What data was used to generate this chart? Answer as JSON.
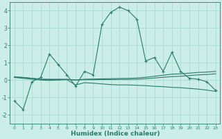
{
  "x": [
    0,
    1,
    2,
    3,
    4,
    5,
    6,
    7,
    8,
    9,
    10,
    11,
    12,
    13,
    14,
    15,
    16,
    17,
    18,
    19,
    20,
    21,
    22,
    23
  ],
  "line1": [
    -1.2,
    -1.7,
    -0.1,
    0.15,
    1.5,
    0.9,
    0.3,
    -0.35,
    0.5,
    0.3,
    3.2,
    3.9,
    4.2,
    4.0,
    3.5,
    1.1,
    1.3,
    0.5,
    1.6,
    0.5,
    0.1,
    0.05,
    -0.1,
    -0.6
  ],
  "line2": [
    0.15,
    0.1,
    0.05,
    0.0,
    -0.02,
    0.0,
    0.02,
    -0.28,
    -0.15,
    -0.18,
    -0.22,
    -0.26,
    -0.28,
    -0.28,
    -0.3,
    -0.32,
    -0.36,
    -0.38,
    -0.42,
    -0.44,
    -0.48,
    -0.52,
    -0.58,
    -0.65
  ],
  "line3": [
    0.18,
    0.15,
    0.1,
    0.05,
    0.04,
    0.04,
    0.04,
    0.0,
    0.02,
    0.02,
    0.03,
    0.03,
    0.04,
    0.04,
    0.05,
    0.08,
    0.12,
    0.16,
    0.2,
    0.22,
    0.26,
    0.3,
    0.32,
    0.36
  ],
  "line4": [
    0.18,
    0.15,
    0.1,
    0.05,
    0.04,
    0.04,
    0.04,
    0.0,
    0.05,
    0.06,
    0.07,
    0.08,
    0.09,
    0.1,
    0.12,
    0.16,
    0.22,
    0.28,
    0.34,
    0.36,
    0.4,
    0.44,
    0.46,
    0.5
  ],
  "line_color": "#2a7a6a",
  "bg_color": "#cceee8",
  "grid_color": "#aaddcc",
  "xlabel": "Humidex (Indice chaleur)",
  "ylim": [
    -2.5,
    4.5
  ],
  "xlim": [
    -0.5,
    23.5
  ],
  "yticks": [
    -2,
    -1,
    0,
    1,
    2,
    3,
    4
  ],
  "xticks": [
    0,
    1,
    2,
    3,
    4,
    5,
    6,
    7,
    8,
    9,
    10,
    11,
    12,
    13,
    14,
    15,
    16,
    17,
    18,
    19,
    20,
    21,
    22,
    23
  ],
  "marker": "+",
  "marker_size": 3,
  "line_width": 0.8
}
